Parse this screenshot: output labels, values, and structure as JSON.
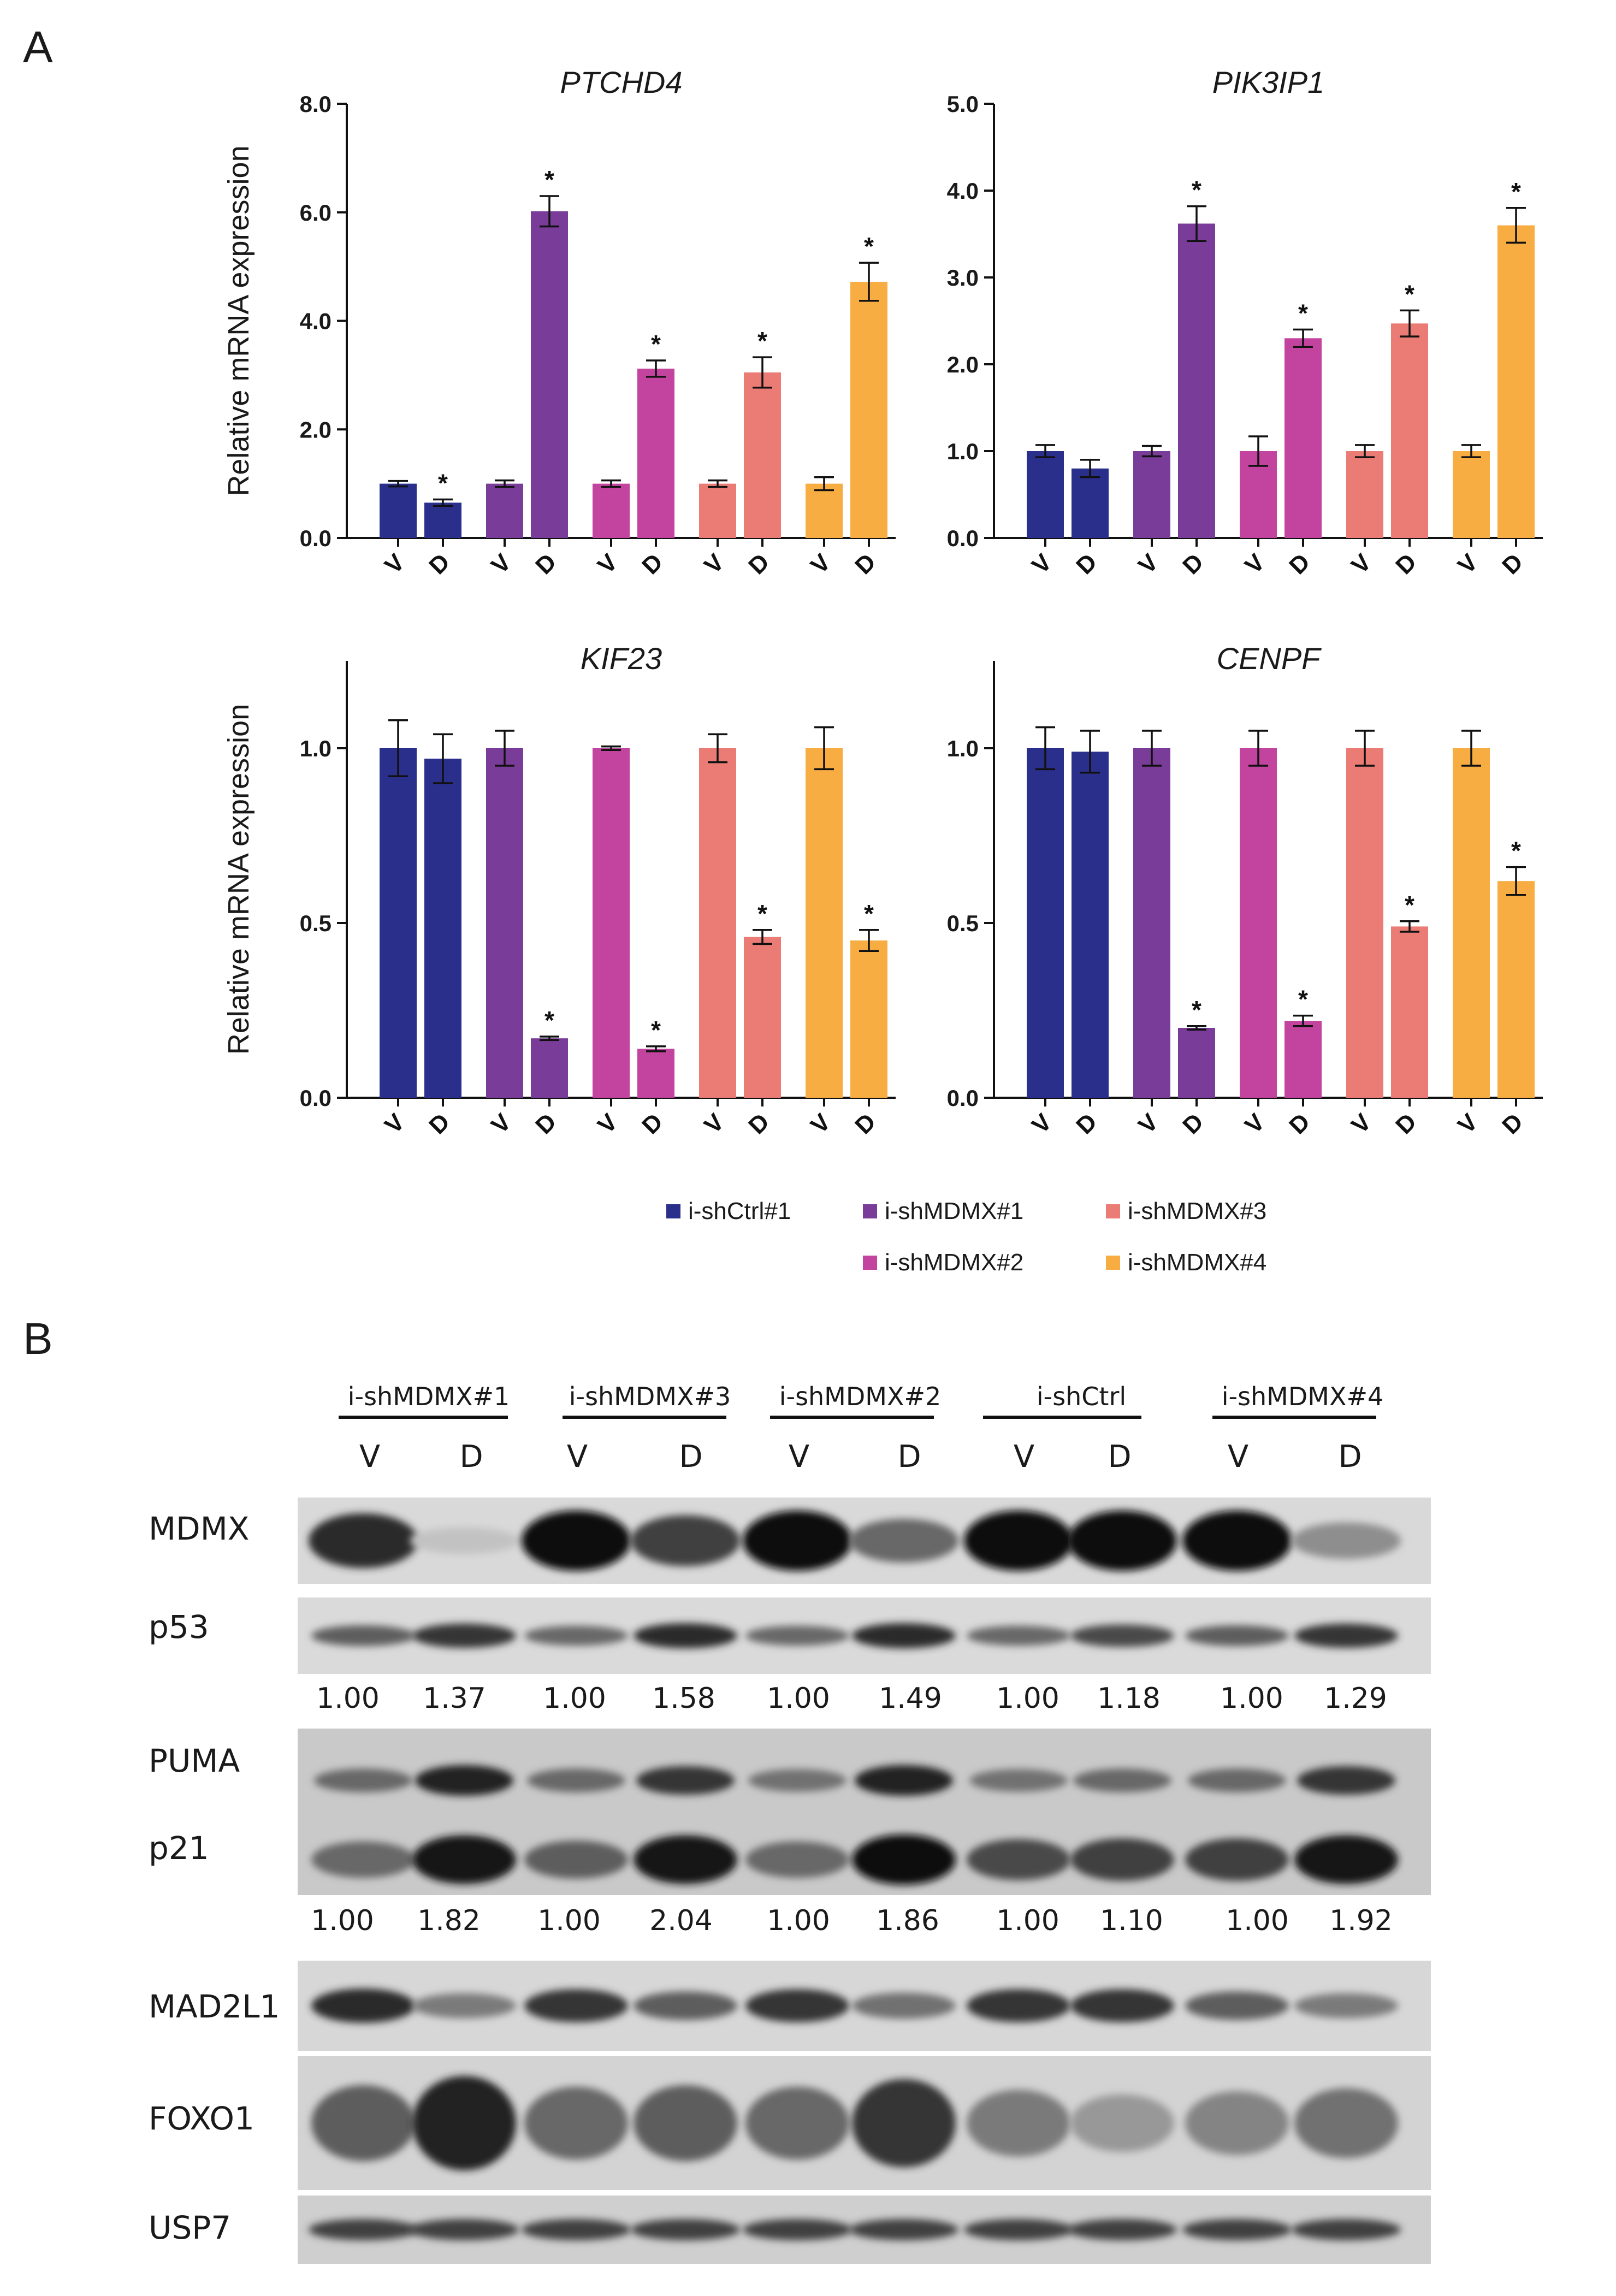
{
  "panels": {
    "a": "A",
    "b": "B"
  },
  "chart_data": [
    {
      "type": "bar",
      "title": "PTCHD4",
      "ylabel": "Relative mRNA expression",
      "ylim": [
        0,
        8
      ],
      "yticks": [
        "0.0",
        "2.0",
        "4.0",
        "6.0",
        "8.0"
      ],
      "yticks_values": [
        0,
        2,
        4,
        6,
        8
      ],
      "categories": [
        "V",
        "D",
        "V",
        "D",
        "V",
        "D",
        "V",
        "D",
        "V",
        "D"
      ],
      "values": [
        1.0,
        0.65,
        1.0,
        6.02,
        1.0,
        3.12,
        1.0,
        3.05,
        1.0,
        4.72
      ],
      "errors": [
        0.05,
        0.06,
        0.06,
        0.28,
        0.06,
        0.15,
        0.06,
        0.28,
        0.12,
        0.35
      ],
      "significant": [
        false,
        true,
        false,
        true,
        false,
        true,
        false,
        true,
        false,
        true
      ],
      "series_colors": [
        "#2a2f8c",
        "#7a3c99",
        "#c2449e",
        "#ea7c75",
        "#f7ad41"
      ]
    },
    {
      "type": "bar",
      "title": "PIK3IP1",
      "ylabel": "",
      "ylim": [
        0,
        5
      ],
      "yticks": [
        "0.0",
        "1.0",
        "2.0",
        "3.0",
        "4.0",
        "5.0"
      ],
      "yticks_values": [
        0,
        1,
        2,
        3,
        4,
        5
      ],
      "categories": [
        "V",
        "D",
        "V",
        "D",
        "V",
        "D",
        "V",
        "D",
        "V",
        "D"
      ],
      "values": [
        1.0,
        0.8,
        1.0,
        3.62,
        1.0,
        2.3,
        1.0,
        2.47,
        1.0,
        3.6
      ],
      "errors": [
        0.07,
        0.1,
        0.06,
        0.2,
        0.17,
        0.1,
        0.07,
        0.15,
        0.07,
        0.2
      ],
      "significant": [
        false,
        false,
        false,
        true,
        false,
        true,
        false,
        true,
        false,
        true
      ],
      "series_colors": [
        "#2a2f8c",
        "#7a3c99",
        "#c2449e",
        "#ea7c75",
        "#f7ad41"
      ]
    },
    {
      "type": "bar",
      "title": "KIF23",
      "ylabel": "Relative mRNA expression",
      "ylim": [
        0,
        1.25
      ],
      "yticks": [
        "0.0",
        "0.5",
        "1.0"
      ],
      "yticks_values": [
        0,
        0.5,
        1.0
      ],
      "categories": [
        "V",
        "D",
        "V",
        "D",
        "V",
        "D",
        "V",
        "D",
        "V",
        "D"
      ],
      "values": [
        1.0,
        0.97,
        1.0,
        0.17,
        1.0,
        0.14,
        1.0,
        0.46,
        1.0,
        0.45
      ],
      "errors": [
        0.08,
        0.07,
        0.05,
        0.005,
        0.005,
        0.007,
        0.04,
        0.02,
        0.06,
        0.03
      ],
      "significant": [
        false,
        false,
        false,
        true,
        false,
        true,
        false,
        true,
        false,
        true
      ],
      "series_colors": [
        "#2a2f8c",
        "#7a3c99",
        "#c2449e",
        "#ea7c75",
        "#f7ad41"
      ]
    },
    {
      "type": "bar",
      "title": "CENPF",
      "ylabel": "",
      "ylim": [
        0,
        1.25
      ],
      "yticks": [
        "0.0",
        "0.5",
        "1.0"
      ],
      "yticks_values": [
        0,
        0.5,
        1.0
      ],
      "categories": [
        "V",
        "D",
        "V",
        "D",
        "V",
        "D",
        "V",
        "D",
        "V",
        "D"
      ],
      "values": [
        1.0,
        0.99,
        1.0,
        0.2,
        1.0,
        0.22,
        1.0,
        0.49,
        1.0,
        0.62
      ],
      "errors": [
        0.06,
        0.06,
        0.05,
        0.005,
        0.05,
        0.015,
        0.05,
        0.015,
        0.05,
        0.04
      ],
      "significant": [
        false,
        false,
        false,
        true,
        false,
        true,
        false,
        true,
        false,
        true
      ],
      "series_colors": [
        "#2a2f8c",
        "#7a3c99",
        "#c2449e",
        "#ea7c75",
        "#f7ad41"
      ]
    }
  ],
  "legend": [
    {
      "label": "i-shCtrl#1",
      "color": "#2a2f8c"
    },
    {
      "label": "i-shMDMX#1",
      "color": "#7a3c99"
    },
    {
      "label": "i-shMDMX#3",
      "color": "#ea7c75"
    },
    {
      "label": "i-shMDMX#2",
      "color": "#c2449e"
    },
    {
      "label": "i-shMDMX#4",
      "color": "#f7ad41"
    }
  ],
  "significance_marker": "*",
  "western_blot": {
    "groups": [
      "i-shMDMX#1",
      "i-shMDMX#3",
      "i-shMDMX#2",
      "i-shCtrl",
      "i-shMDMX#4"
    ],
    "lanes": [
      "V",
      "D",
      "V",
      "D",
      "V",
      "D",
      "V",
      "D",
      "V",
      "D"
    ],
    "rows": {
      "mdmx": "MDMX",
      "p53": "p53",
      "puma": "PUMA",
      "p21": "p21",
      "mad2l1": "MAD2L1",
      "foxo1": "FOXO1",
      "usp7": "USP7"
    },
    "p53_quant": [
      "1.00",
      "1.37",
      "1.00",
      "1.58",
      "1.00",
      "1.49",
      "1.00",
      "1.18",
      "1.00",
      "1.29"
    ],
    "p21_quant": [
      "1.00",
      "1.82",
      "1.00",
      "2.04",
      "1.00",
      "1.86",
      "1.00",
      "1.10",
      "1.00",
      "1.92"
    ],
    "band_intensity": {
      "mdmx": [
        0.85,
        0.08,
        1.0,
        0.75,
        1.0,
        0.55,
        1.0,
        1.0,
        1.0,
        0.35
      ],
      "p53": [
        0.6,
        0.8,
        0.55,
        0.85,
        0.55,
        0.85,
        0.55,
        0.7,
        0.6,
        0.8
      ],
      "puma": [
        0.55,
        0.9,
        0.55,
        0.8,
        0.5,
        0.9,
        0.5,
        0.55,
        0.55,
        0.8
      ],
      "p21": [
        0.55,
        0.95,
        0.6,
        0.95,
        0.55,
        1.0,
        0.7,
        0.75,
        0.75,
        0.95
      ],
      "mad2l1": [
        0.85,
        0.45,
        0.8,
        0.6,
        0.8,
        0.5,
        0.8,
        0.8,
        0.6,
        0.45
      ],
      "foxo1": [
        0.6,
        0.9,
        0.55,
        0.6,
        0.55,
        0.8,
        0.45,
        0.3,
        0.4,
        0.5
      ],
      "usp7": [
        0.75,
        0.75,
        0.75,
        0.75,
        0.75,
        0.75,
        0.75,
        0.75,
        0.75,
        0.75
      ]
    }
  }
}
